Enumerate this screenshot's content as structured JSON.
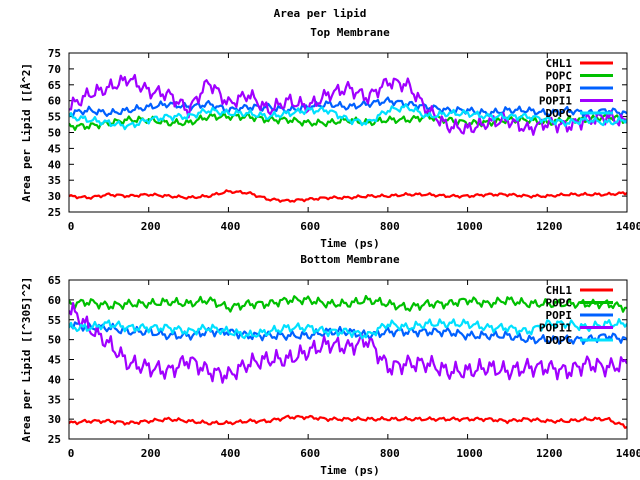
{
  "title": "Area per lipid",
  "chart_data": [
    {
      "type": "line",
      "title": "Top Membrane",
      "xlabel": "Time (ps)",
      "ylabel": "Area per Lipid [[Å^2]",
      "xlim": [
        0,
        1400
      ],
      "ylim": [
        25,
        75
      ],
      "xticks": [
        0,
        200,
        400,
        600,
        800,
        1000,
        1200,
        1400
      ],
      "yticks": [
        25,
        30,
        35,
        40,
        45,
        50,
        55,
        60,
        65,
        70,
        75
      ],
      "xtick_labels": [
        "0",
        "200",
        "400",
        "600",
        "800",
        "1000",
        "1200",
        "1400"
      ],
      "ytick_labels": [
        "25",
        "30",
        "35",
        "40",
        "45",
        "50",
        "55",
        "60",
        "65",
        "70",
        "75"
      ],
      "legend_position": "top-right",
      "x": [
        0,
        50,
        100,
        150,
        200,
        250,
        300,
        350,
        400,
        450,
        500,
        550,
        600,
        650,
        700,
        750,
        800,
        850,
        900,
        950,
        1000,
        1050,
        1100,
        1150,
        1200,
        1250,
        1300,
        1350,
        1400
      ],
      "series": [
        {
          "name": "CHL1",
          "color": "#ff0000",
          "values": [
            30,
            29.5,
            30.5,
            30,
            30.5,
            30,
            29.5,
            30,
            31.5,
            31,
            29,
            28.5,
            29,
            29.5,
            29.5,
            30,
            30,
            30.5,
            30.5,
            30,
            30,
            30.5,
            30.5,
            30,
            30,
            30.5,
            30.5,
            30.5,
            31
          ]
        },
        {
          "name": "POPC",
          "color": "#00c000",
          "values": [
            52,
            52,
            53,
            54,
            54,
            53,
            53,
            55,
            55,
            55,
            54,
            54,
            53,
            53,
            54,
            53,
            54,
            54,
            55,
            54,
            53,
            53,
            54,
            54,
            53,
            54,
            54,
            55,
            54
          ]
        },
        {
          "name": "POPI",
          "color": "#0060ff",
          "values": [
            56,
            57,
            56,
            57,
            58,
            59,
            58,
            59,
            57,
            58,
            58,
            57,
            58,
            59,
            58,
            59,
            60,
            59,
            58,
            57,
            57,
            56,
            57,
            57,
            56,
            57,
            56,
            57,
            56
          ]
        },
        {
          "name": "POPI1",
          "color": "#a000ff",
          "values": [
            58,
            62,
            64,
            67,
            63,
            62,
            57,
            66,
            59,
            62,
            57,
            60,
            58,
            62,
            64,
            61,
            66,
            65,
            57,
            52,
            51,
            53,
            54,
            51,
            53,
            52,
            54,
            55,
            53
          ]
        },
        {
          "name": "DOPC",
          "color": "#00e0ff",
          "values": [
            55,
            54,
            53,
            52,
            54,
            55,
            55,
            57,
            56,
            56,
            55,
            56,
            57,
            57,
            54,
            53,
            57,
            58,
            55,
            56,
            56,
            55,
            55,
            55,
            54,
            53,
            54,
            53,
            54
          ]
        }
      ]
    },
    {
      "type": "line",
      "title": "Bottom Membrane",
      "xlabel": "Time (ps)",
      "ylabel": "Area per Lipid [[^305]^2]",
      "xlim": [
        0,
        1400
      ],
      "ylim": [
        25,
        65
      ],
      "xticks": [
        0,
        200,
        400,
        600,
        800,
        1000,
        1200,
        1400
      ],
      "yticks": [
        25,
        30,
        35,
        40,
        45,
        50,
        55,
        60,
        65
      ],
      "xtick_labels": [
        "0",
        "200",
        "400",
        "600",
        "800",
        "1000",
        "1200",
        "1400"
      ],
      "ytick_labels": [
        "25",
        "30",
        "35",
        "40",
        "45",
        "50",
        "55",
        "60",
        "65"
      ],
      "legend_position": "top-right",
      "x": [
        0,
        50,
        100,
        150,
        200,
        250,
        300,
        350,
        400,
        450,
        500,
        550,
        600,
        650,
        700,
        750,
        800,
        850,
        900,
        950,
        1000,
        1050,
        1100,
        1150,
        1200,
        1250,
        1300,
        1350,
        1400
      ],
      "series": [
        {
          "name": "CHL1",
          "color": "#ff0000",
          "values": [
            29,
            29.5,
            29.5,
            29,
            29.5,
            30,
            29.5,
            29,
            29,
            29.5,
            29.5,
            30.5,
            30.5,
            30,
            30,
            30,
            30,
            30,
            30,
            30,
            30,
            30,
            29.5,
            30,
            29.5,
            29.5,
            30,
            30,
            28
          ]
        },
        {
          "name": "POPC",
          "color": "#00c000",
          "values": [
            59,
            59.5,
            58.5,
            59,
            59,
            59.5,
            59,
            60,
            58,
            59,
            59,
            60,
            60,
            59,
            59,
            60,
            59,
            58,
            59,
            59,
            60,
            59,
            60,
            59,
            59,
            59,
            59,
            59,
            58
          ]
        },
        {
          "name": "POPI",
          "color": "#0060ff",
          "values": [
            54,
            53,
            53,
            52,
            52,
            51,
            51,
            52,
            52,
            51,
            51,
            51,
            51,
            52,
            52,
            51,
            52,
            52,
            52,
            52,
            51,
            51,
            51,
            50,
            50,
            50,
            50,
            51,
            50
          ]
        },
        {
          "name": "POPI1",
          "color": "#a000ff",
          "values": [
            58,
            53,
            49,
            44,
            43,
            42,
            45,
            42,
            41,
            44,
            45,
            45,
            47,
            49,
            48,
            50,
            43,
            44,
            44,
            42,
            42,
            43,
            42,
            43,
            43,
            42,
            44,
            43,
            44
          ]
        },
        {
          "name": "DOPC",
          "color": "#00e0ff",
          "values": [
            53,
            53,
            54,
            53,
            53,
            53,
            52,
            53,
            52,
            51,
            52,
            53,
            53,
            52,
            52,
            51,
            54,
            53,
            54,
            54,
            54,
            53,
            53,
            52,
            54,
            54,
            53,
            54,
            54
          ]
        }
      ]
    }
  ]
}
